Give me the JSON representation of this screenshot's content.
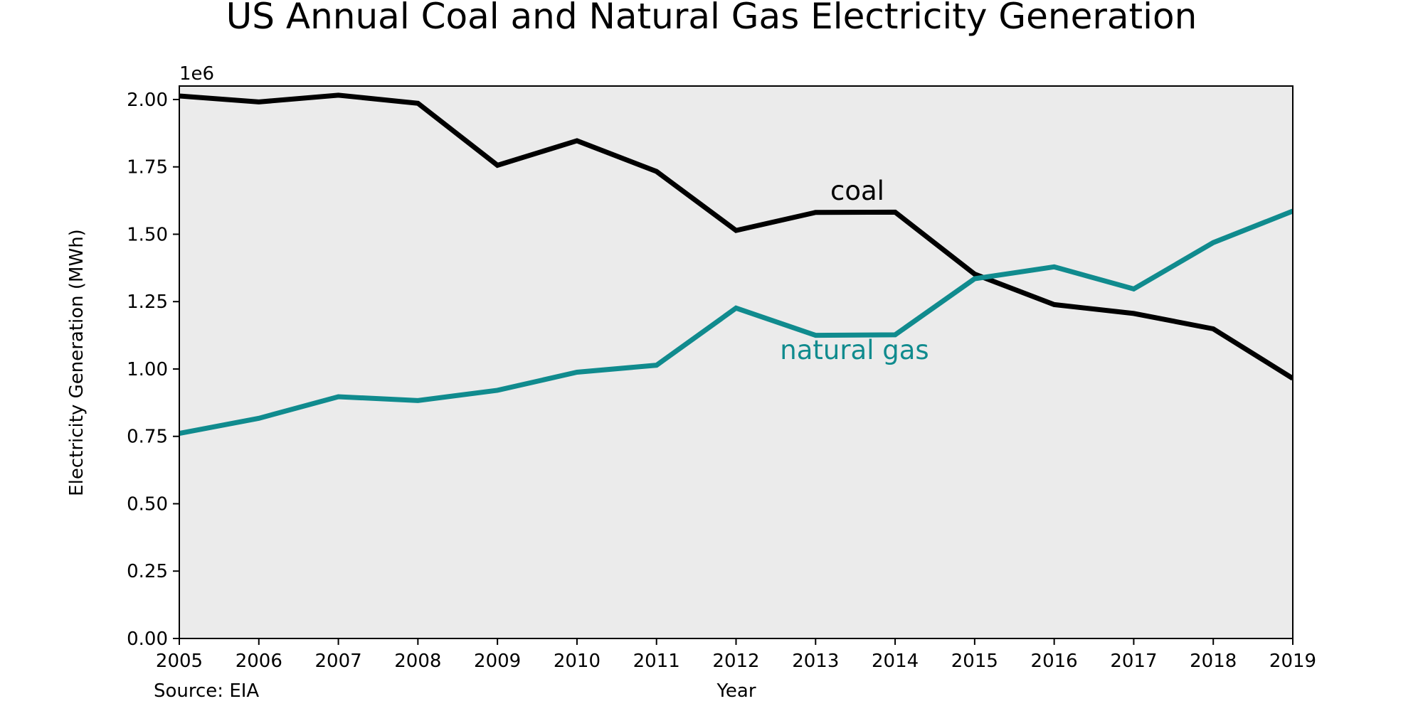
{
  "chart_data": {
    "type": "line",
    "title": "US Annual Coal and Natural Gas Electricity Generation",
    "xlabel": "Year",
    "ylabel": "Electricity Generation (MWh)",
    "y_offset_label": "1e6",
    "source": "Source: EIA",
    "x": [
      2005,
      2006,
      2007,
      2008,
      2009,
      2010,
      2011,
      2012,
      2013,
      2014,
      2015,
      2016,
      2017,
      2018,
      2019
    ],
    "xlim": [
      2005,
      2019
    ],
    "ylim": [
      0,
      2.05
    ],
    "y_scale_note": "values in millions of MWh (axis multiplier 1e6)",
    "x_ticks": [
      "2005",
      "2006",
      "2007",
      "2008",
      "2009",
      "2010",
      "2011",
      "2012",
      "2013",
      "2014",
      "2015",
      "2016",
      "2017",
      "2018",
      "2019"
    ],
    "y_ticks": [
      0,
      0.25,
      0.5,
      0.75,
      1.0,
      1.25,
      1.5,
      1.75,
      2.0
    ],
    "y_tick_labels": [
      "0.00",
      "0.25",
      "0.50",
      "0.75",
      "1.00",
      "1.25",
      "1.50",
      "1.75",
      "2.00"
    ],
    "grid": false,
    "background_color": "#ebebeb",
    "series": [
      {
        "name": "coal",
        "color": "#000000",
        "values": [
          2.013,
          1.991,
          2.016,
          1.986,
          1.756,
          1.847,
          1.733,
          1.514,
          1.581,
          1.582,
          1.352,
          1.239,
          1.206,
          1.149,
          0.965
        ]
      },
      {
        "name": "natural gas",
        "color": "#108b8e",
        "values": [
          0.761,
          0.817,
          0.897,
          0.883,
          0.921,
          0.988,
          1.014,
          1.226,
          1.125,
          1.127,
          1.335,
          1.379,
          1.297,
          1.469,
          1.586
        ]
      }
    ]
  }
}
